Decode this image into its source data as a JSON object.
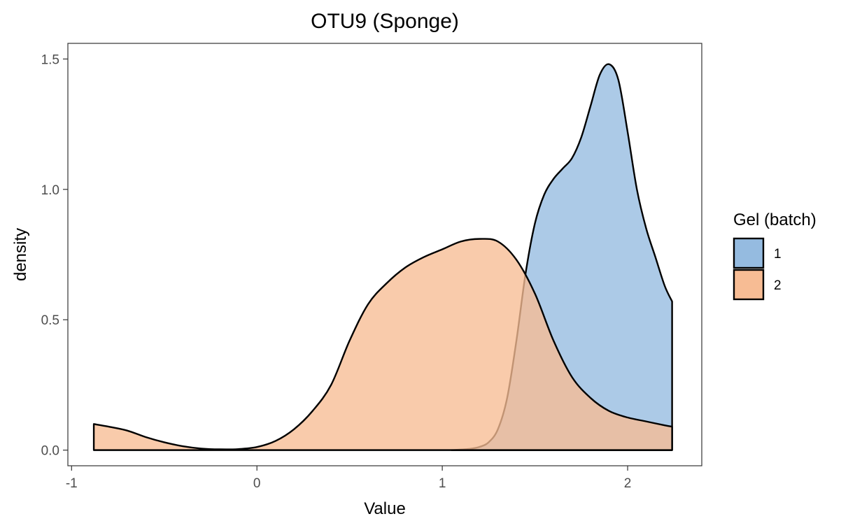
{
  "chart_data": {
    "type": "area",
    "subtype": "density",
    "title": "OTU9 (Sponge)",
    "xlabel": "Value",
    "ylabel": "density",
    "xlim": [
      -1.02,
      2.4
    ],
    "ylim": [
      -0.06,
      1.56
    ],
    "x_ticks": [
      -1,
      0,
      1,
      2
    ],
    "x_tick_labels": [
      "-1",
      "0",
      "1",
      "2"
    ],
    "y_ticks": [
      0.0,
      0.5,
      1.0,
      1.5
    ],
    "y_tick_labels": [
      "0.0",
      "0.5",
      "1.0",
      "1.5"
    ],
    "grid": false,
    "legend": {
      "title": "Gel (batch)",
      "position": "right"
    },
    "series": [
      {
        "name": "1",
        "color": "#95bbe0",
        "x": [
          1.05,
          1.15,
          1.2,
          1.25,
          1.3,
          1.35,
          1.4,
          1.45,
          1.5,
          1.55,
          1.6,
          1.65,
          1.7,
          1.75,
          1.8,
          1.85,
          1.9,
          1.95,
          2.0,
          2.05,
          2.1,
          2.15,
          2.2,
          2.24
        ],
        "density": [
          0.0,
          0.005,
          0.012,
          0.03,
          0.08,
          0.2,
          0.42,
          0.68,
          0.87,
          0.98,
          1.04,
          1.08,
          1.12,
          1.2,
          1.32,
          1.44,
          1.48,
          1.42,
          1.22,
          1.0,
          0.85,
          0.74,
          0.63,
          0.57
        ]
      },
      {
        "name": "2",
        "color": "#f7bc94",
        "x": [
          -0.88,
          -0.8,
          -0.7,
          -0.6,
          -0.5,
          -0.4,
          -0.3,
          -0.2,
          -0.1,
          0.0,
          0.1,
          0.2,
          0.3,
          0.4,
          0.5,
          0.6,
          0.7,
          0.8,
          0.9,
          1.0,
          1.1,
          1.2,
          1.3,
          1.4,
          1.5,
          1.6,
          1.7,
          1.8,
          1.9,
          2.0,
          2.1,
          2.2,
          2.24
        ],
        "density": [
          0.1,
          0.09,
          0.075,
          0.05,
          0.03,
          0.015,
          0.006,
          0.003,
          0.004,
          0.012,
          0.035,
          0.08,
          0.15,
          0.25,
          0.42,
          0.56,
          0.64,
          0.7,
          0.74,
          0.77,
          0.8,
          0.81,
          0.8,
          0.73,
          0.6,
          0.42,
          0.28,
          0.2,
          0.15,
          0.125,
          0.11,
          0.095,
          0.09
        ]
      }
    ]
  }
}
